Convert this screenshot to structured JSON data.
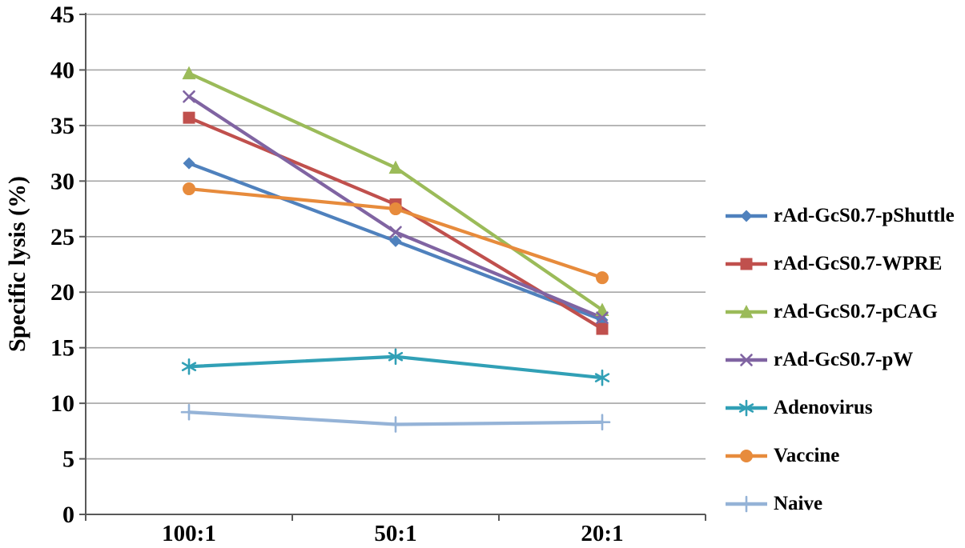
{
  "chart_data": {
    "type": "line",
    "title": "",
    "xlabel": "",
    "ylabel": "Specific lysis (%)",
    "categories": [
      "100:1",
      "50:1",
      "20:1"
    ],
    "ylim": [
      0,
      45
    ],
    "ytick_step": 5,
    "yticks": [
      0,
      5,
      10,
      15,
      20,
      25,
      30,
      35,
      40,
      45
    ],
    "grid": true,
    "legend_position": "right",
    "colors": {
      "axis": "#595959",
      "gridline": "#a6a6a6",
      "background": "#ffffff",
      "text": "#000000"
    },
    "series": [
      {
        "name": "rAd-GcS0.7-pShuttle",
        "marker": "diamond",
        "color": "#4f81bd",
        "values": [
          31.6,
          24.6,
          17.5
        ]
      },
      {
        "name": "rAd-GcS0.7-WPRE",
        "marker": "square",
        "color": "#c0504d",
        "values": [
          35.7,
          27.9,
          16.7
        ]
      },
      {
        "name": "rAd-GcS0.7-pCAG",
        "marker": "triangle",
        "color": "#9bbb59",
        "values": [
          39.7,
          31.2,
          18.4
        ]
      },
      {
        "name": "rAd-GcS0.7-pW",
        "marker": "x",
        "color": "#8064a2",
        "values": [
          37.6,
          25.4,
          17.7
        ]
      },
      {
        "name": "Adenovirus",
        "marker": "asterisk",
        "color": "#31a0b6",
        "values": [
          13.3,
          14.2,
          12.3
        ]
      },
      {
        "name": "Vaccine",
        "marker": "circle",
        "color": "#e78b3c",
        "values": [
          29.3,
          27.5,
          21.3
        ]
      },
      {
        "name": "Naive",
        "marker": "plus",
        "color": "#95b3d7",
        "values": [
          9.2,
          8.1,
          8.3
        ]
      }
    ]
  }
}
